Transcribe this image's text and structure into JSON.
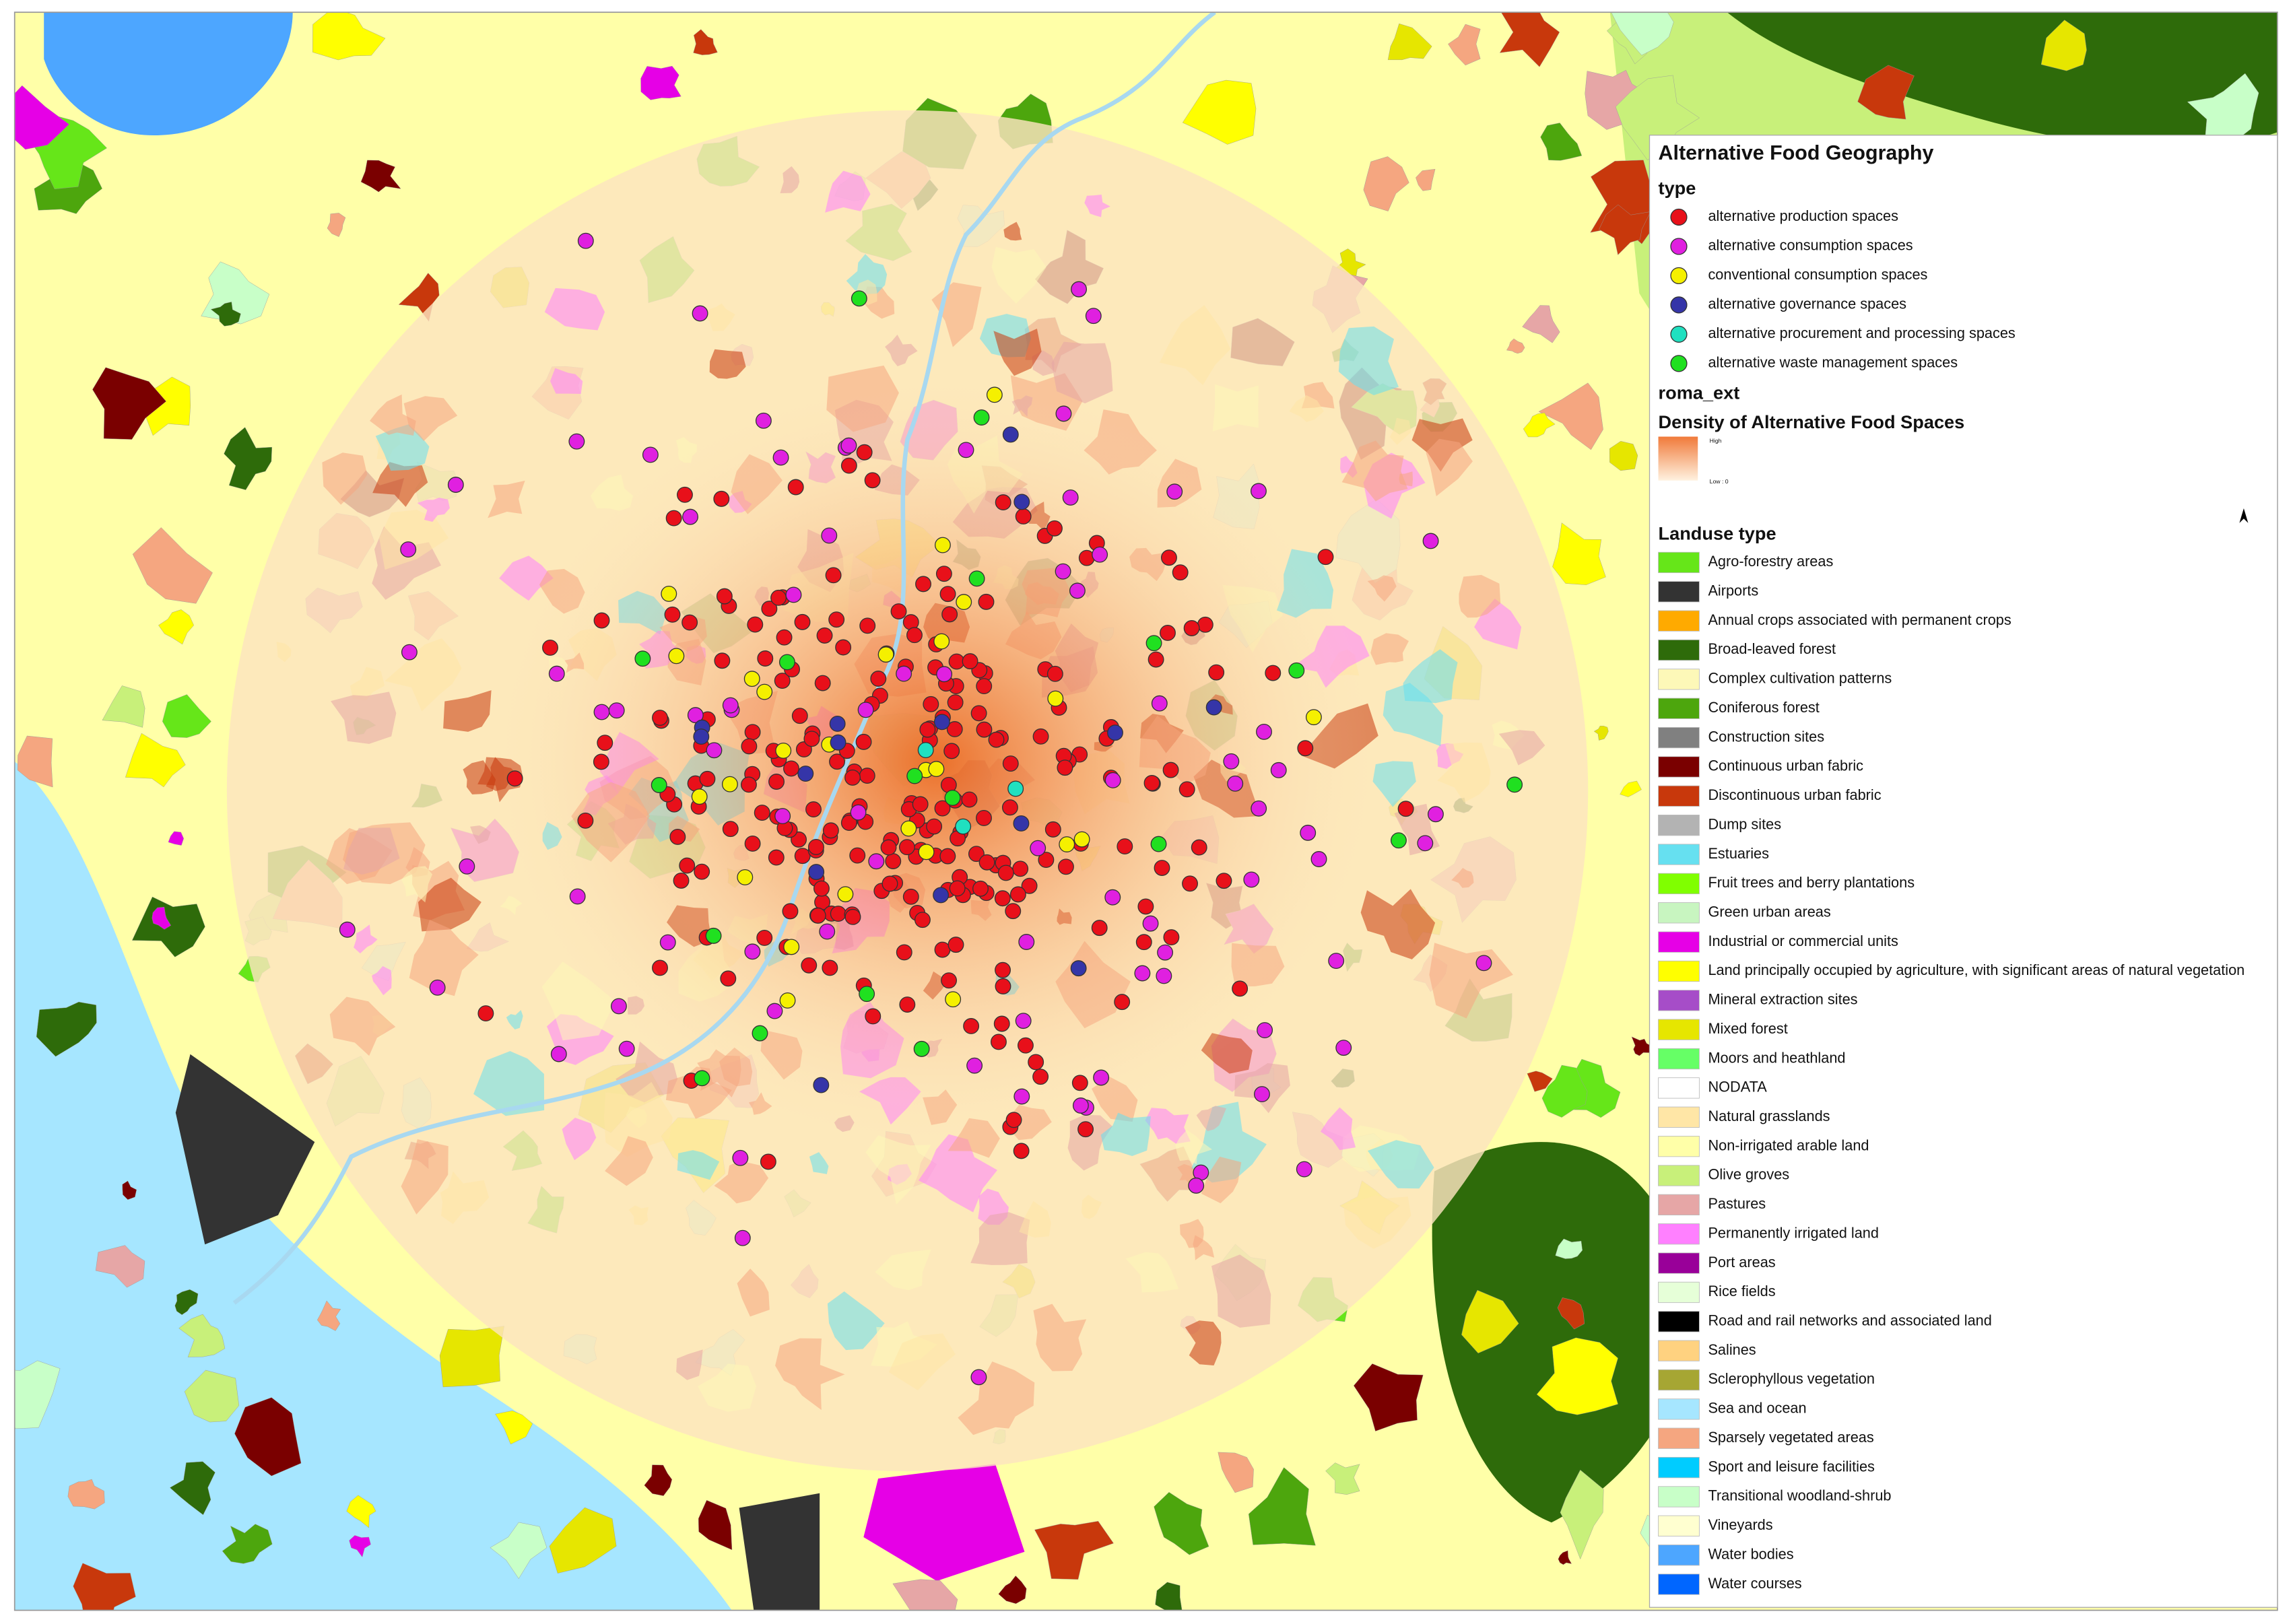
{
  "legend": {
    "title": "Alternative Food Geography",
    "type_heading": "type",
    "types": [
      {
        "label": "alternative production spaces",
        "color": "#e8101a"
      },
      {
        "label": "alternative consumption spaces",
        "color": "#e020e0"
      },
      {
        "label": "conventional consumption spaces",
        "color": "#f5f000"
      },
      {
        "label": "alternative governance spaces",
        "color": "#3535a8"
      },
      {
        "label": "alternative procurement and processing spaces",
        "color": "#20e0c0"
      },
      {
        "label": "alternative waste management spaces",
        "color": "#20e020"
      }
    ],
    "layer_name": "roma_ext",
    "density_heading": "Density of Alternative Food Spaces",
    "density_high": "High",
    "density_low": "Low : 0",
    "landuse_heading": "Landuse type",
    "landuse": [
      {
        "label": "Agro-forestry areas",
        "color": "#66e619"
      },
      {
        "label": "Airports",
        "color": "#333333"
      },
      {
        "label": "Annual crops associated with permanent crops",
        "color": "#ffaa00"
      },
      {
        "label": "Broad-leaved forest",
        "color": "#2e6b0a"
      },
      {
        "label": "Complex cultivation patterns",
        "color": "#fdf8b8"
      },
      {
        "label": "Coniferous forest",
        "color": "#4da60d"
      },
      {
        "label": "Construction sites",
        "color": "#808080"
      },
      {
        "label": "Continuous urban fabric",
        "color": "#7a0000"
      },
      {
        "label": "Discontinuous urban fabric",
        "color": "#c8380c"
      },
      {
        "label": "Dump sites",
        "color": "#b3b3b3"
      },
      {
        "label": "Estuaries",
        "color": "#66e0f0"
      },
      {
        "label": "Fruit trees and berry plantations",
        "color": "#80ff00"
      },
      {
        "label": "Green urban areas",
        "color": "#c8f5c0"
      },
      {
        "label": "Industrial or commercial units",
        "color": "#e600e6"
      },
      {
        "label": "Land principally occupied by agriculture, with significant areas of natural vegetation",
        "color": "#ffff00"
      },
      {
        "label": "Mineral extraction sites",
        "color": "#a64dc8"
      },
      {
        "label": "Mixed forest",
        "color": "#e6e600"
      },
      {
        "label": "Moors and heathland",
        "color": "#66ff66"
      },
      {
        "label": "NODATA",
        "color": "#ffffff"
      },
      {
        "label": "Natural grasslands",
        "color": "#ffe6a6"
      },
      {
        "label": "Non-irrigated arable land",
        "color": "#ffffa8"
      },
      {
        "label": "Olive groves",
        "color": "#c8f07a"
      },
      {
        "label": "Pastures",
        "color": "#e6a6a6"
      },
      {
        "label": "Permanently irrigated land",
        "color": "#ff80ff"
      },
      {
        "label": "Port areas",
        "color": "#990099"
      },
      {
        "label": "Rice fields",
        "color": "#e6ffd8"
      },
      {
        "label": "Road and rail networks and associated land",
        "color": "#000000"
      },
      {
        "label": "Salines",
        "color": "#ffd280"
      },
      {
        "label": "Sclerophyllous vegetation",
        "color": "#a6a633"
      },
      {
        "label": "Sea and ocean",
        "color": "#a6e6ff"
      },
      {
        "label": "Sparsely vegetated areas",
        "color": "#f5a680"
      },
      {
        "label": "Sport and leisure facilities",
        "color": "#00ccff"
      },
      {
        "label": "Transitional woodland-shrub",
        "color": "#c8ffc8"
      },
      {
        "label": "Vineyards",
        "color": "#ffffd0"
      },
      {
        "label": "Water bodies",
        "color": "#4da6ff"
      },
      {
        "label": "Water courses",
        "color": "#0066ff"
      }
    ]
  }
}
